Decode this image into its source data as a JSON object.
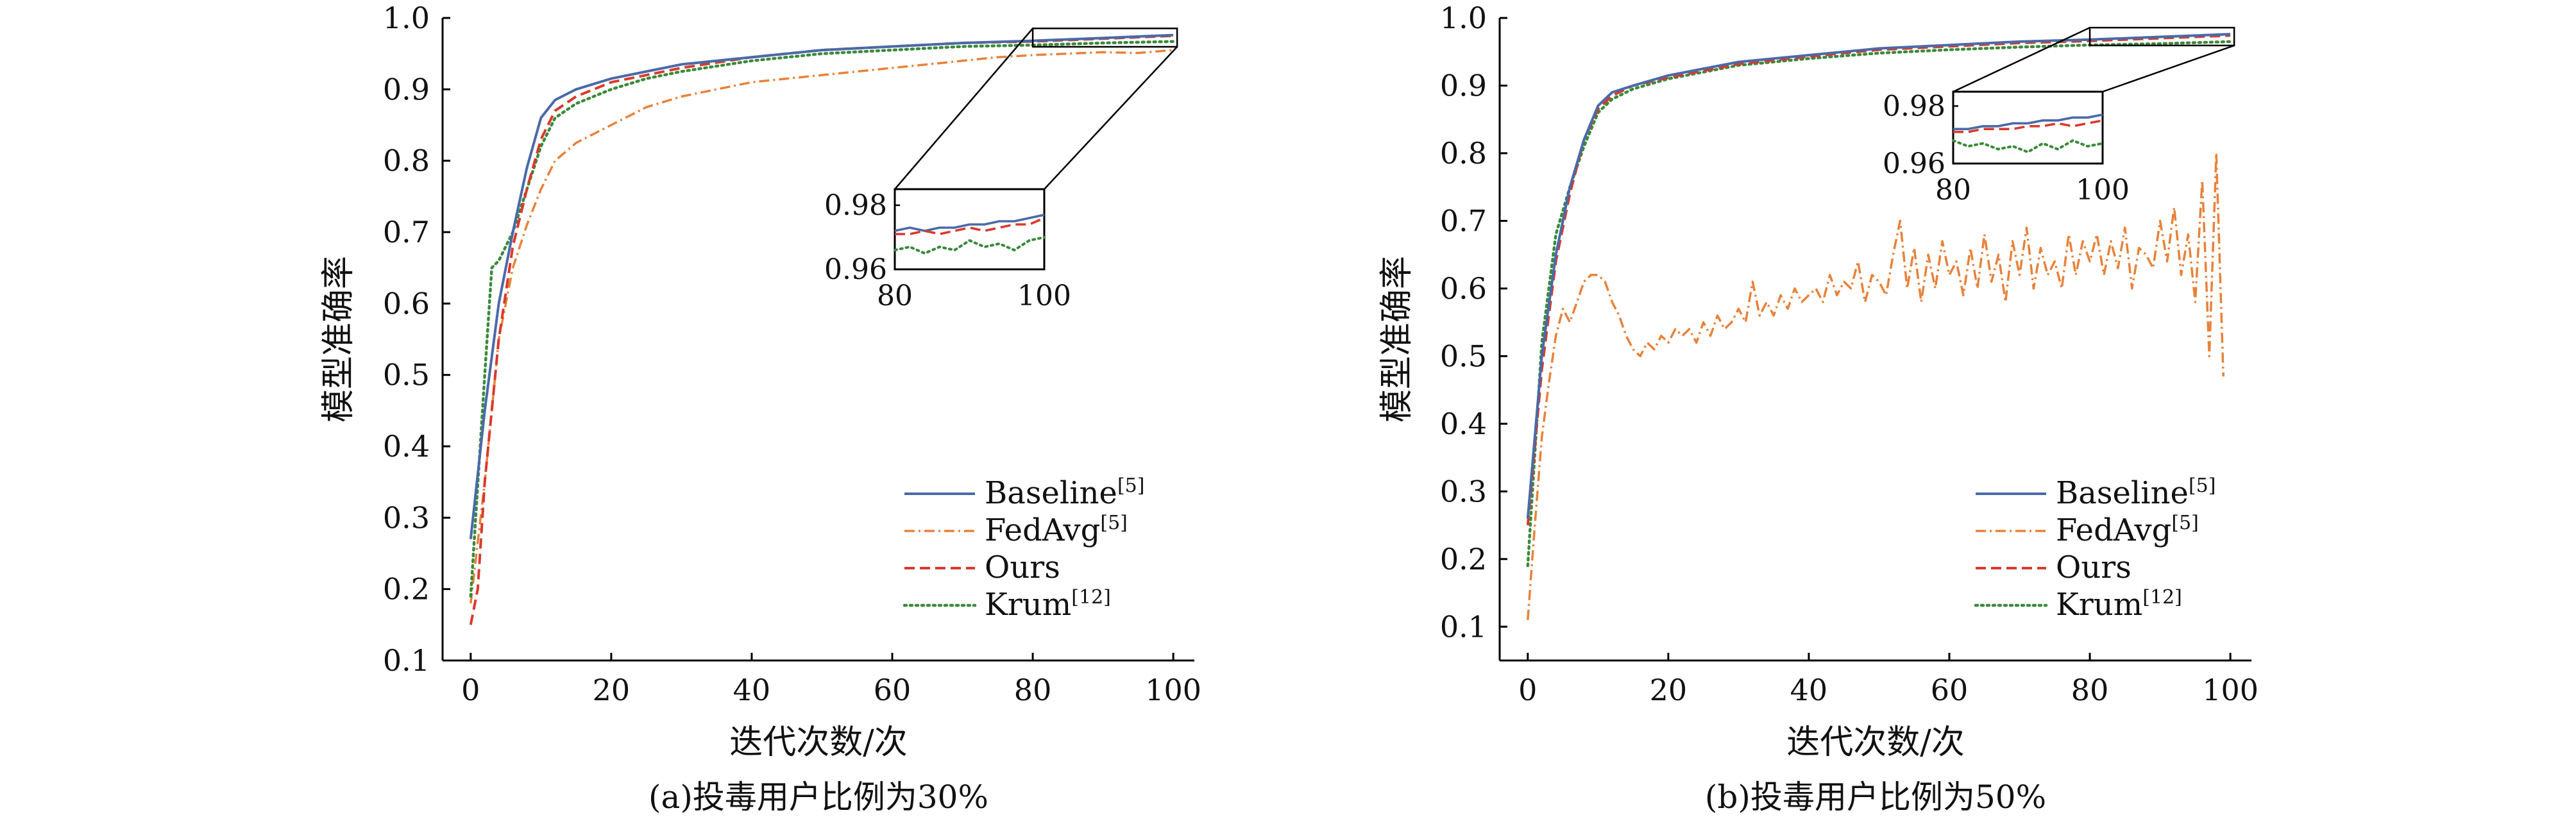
{
  "colors": {
    "baseline": "#4a6aa8",
    "fedavg": "#e8823a",
    "ours": "#d93a2b",
    "krum": "#3b8a3b",
    "axis": "#000000"
  },
  "chart_data": [
    {
      "type": "line",
      "id": "a",
      "caption": "(a)投毒用户比例为30%",
      "xlabel": "迭代次数/次",
      "ylabel": "模型准确率",
      "xlim": [
        -4,
        103
      ],
      "ylim": [
        0.1,
        1.0
      ],
      "xticks": [
        0,
        20,
        40,
        60,
        80,
        100
      ],
      "yticks": [
        0.1,
        0.2,
        0.3,
        0.4,
        0.5,
        0.6,
        0.7,
        0.8,
        0.9,
        1.0
      ],
      "ytick_labels": [
        "0.1",
        "0.2",
        "0.3",
        "0.4",
        "0.5",
        "0.6",
        "0.7",
        "0.8",
        "0.9",
        "1.0"
      ],
      "legend_position": "lower-right",
      "legend": [
        {
          "key": "baseline",
          "label": "Baseline",
          "sup": "[5]"
        },
        {
          "key": "fedavg",
          "label": "FedAvg",
          "sup": "[5]"
        },
        {
          "key": "ours",
          "label": "Ours",
          "sup": ""
        },
        {
          "key": "krum",
          "label": "Krum",
          "sup": "[12]"
        }
      ],
      "series": [
        {
          "key": "baseline",
          "style": "solid",
          "x": [
            0,
            2,
            4,
            6,
            8,
            10,
            12,
            15,
            20,
            25,
            30,
            40,
            50,
            60,
            70,
            80,
            90,
            100
          ],
          "y": [
            0.27,
            0.45,
            0.6,
            0.7,
            0.79,
            0.86,
            0.885,
            0.9,
            0.915,
            0.925,
            0.935,
            0.945,
            0.955,
            0.96,
            0.965,
            0.968,
            0.972,
            0.976
          ]
        },
        {
          "key": "fedavg",
          "style": "dashdot",
          "x": [
            0,
            2,
            4,
            6,
            8,
            10,
            12,
            15,
            20,
            25,
            30,
            35,
            40,
            45,
            50,
            55,
            60,
            65,
            70,
            75,
            80,
            85,
            90,
            95,
            100
          ],
          "y": [
            0.18,
            0.35,
            0.55,
            0.65,
            0.71,
            0.76,
            0.8,
            0.825,
            0.85,
            0.875,
            0.89,
            0.9,
            0.91,
            0.915,
            0.92,
            0.925,
            0.93,
            0.935,
            0.94,
            0.945,
            0.948,
            0.95,
            0.952,
            0.951,
            0.955
          ]
        },
        {
          "key": "ours",
          "style": "dashed",
          "x": [
            0,
            1,
            2,
            4,
            6,
            8,
            10,
            12,
            15,
            20,
            25,
            30,
            40,
            50,
            60,
            70,
            80,
            90,
            100
          ],
          "y": [
            0.15,
            0.2,
            0.35,
            0.55,
            0.68,
            0.76,
            0.83,
            0.87,
            0.89,
            0.91,
            0.92,
            0.93,
            0.945,
            0.955,
            0.96,
            0.965,
            0.967,
            0.971,
            0.975
          ]
        },
        {
          "key": "krum",
          "style": "dotted",
          "x": [
            0,
            2,
            3,
            4,
            6,
            8,
            10,
            12,
            15,
            20,
            25,
            30,
            40,
            50,
            60,
            70,
            80,
            90,
            100
          ],
          "y": [
            0.19,
            0.5,
            0.65,
            0.66,
            0.7,
            0.76,
            0.82,
            0.86,
            0.88,
            0.9,
            0.915,
            0.925,
            0.94,
            0.95,
            0.955,
            0.96,
            0.962,
            0.965,
            0.967
          ]
        }
      ],
      "inset": {
        "xlim": [
          80,
          100
        ],
        "ylim": [
          0.96,
          0.985
        ],
        "xticks": [
          80,
          100
        ],
        "yticks": [
          0.96,
          0.98
        ],
        "ytick_labels": [
          "0.96",
          "0.98"
        ],
        "zoom_region": {
          "x": [
            80,
            100
          ],
          "y": [
            0.965,
            0.98
          ]
        },
        "series": [
          {
            "key": "baseline",
            "style": "solid",
            "x": [
              80,
              82,
              84,
              86,
              88,
              90,
              92,
              94,
              96,
              98,
              100
            ],
            "y": [
              0.972,
              0.973,
              0.972,
              0.973,
              0.973,
              0.974,
              0.974,
              0.975,
              0.975,
              0.976,
              0.977
            ]
          },
          {
            "key": "ours",
            "style": "dashed",
            "x": [
              80,
              82,
              84,
              86,
              88,
              90,
              92,
              94,
              96,
              98,
              100
            ],
            "y": [
              0.971,
              0.971,
              0.972,
              0.971,
              0.972,
              0.973,
              0.972,
              0.973,
              0.974,
              0.974,
              0.976
            ]
          },
          {
            "key": "krum",
            "style": "dotted",
            "x": [
              80,
              82,
              84,
              86,
              88,
              90,
              92,
              94,
              96,
              98,
              100
            ],
            "y": [
              0.966,
              0.967,
              0.965,
              0.967,
              0.966,
              0.969,
              0.967,
              0.968,
              0.966,
              0.969,
              0.97
            ]
          }
        ]
      }
    },
    {
      "type": "line",
      "id": "b",
      "caption": "(b)投毒用户比例为50%",
      "xlabel": "迭代次数/次",
      "ylabel": "模型准确率",
      "xlim": [
        -4,
        103
      ],
      "ylim": [
        0.05,
        1.0
      ],
      "xticks": [
        0,
        20,
        40,
        60,
        80,
        100
      ],
      "yticks": [
        0.1,
        0.2,
        0.3,
        0.4,
        0.5,
        0.6,
        0.7,
        0.8,
        0.9,
        1.0
      ],
      "ytick_labels": [
        "0.1",
        "0.2",
        "0.3",
        "0.4",
        "0.5",
        "0.6",
        "0.7",
        "0.8",
        "0.9",
        "1.0"
      ],
      "legend_position": "lower-right",
      "legend": [
        {
          "key": "baseline",
          "label": "Baseline",
          "sup": "[5]"
        },
        {
          "key": "fedavg",
          "label": "FedAvg",
          "sup": "[5]"
        },
        {
          "key": "ours",
          "label": "Ours",
          "sup": ""
        },
        {
          "key": "krum",
          "label": "Krum",
          "sup": "[12]"
        }
      ],
      "series": [
        {
          "key": "baseline",
          "style": "solid",
          "x": [
            0,
            2,
            4,
            6,
            8,
            10,
            12,
            15,
            20,
            25,
            30,
            40,
            50,
            60,
            70,
            80,
            90,
            100
          ],
          "y": [
            0.26,
            0.5,
            0.65,
            0.75,
            0.82,
            0.87,
            0.89,
            0.9,
            0.915,
            0.925,
            0.935,
            0.945,
            0.955,
            0.96,
            0.965,
            0.968,
            0.972,
            0.976
          ]
        },
        {
          "key": "fedavg",
          "style": "dashdot",
          "x": [
            0,
            1,
            2,
            3,
            4,
            5,
            6,
            7,
            8,
            9,
            10,
            11,
            12,
            13,
            14,
            15,
            16,
            17,
            18,
            19,
            20,
            21,
            22,
            23,
            24,
            25,
            26,
            27,
            28,
            29,
            30,
            31,
            32,
            33,
            34,
            35,
            36,
            37,
            38,
            39,
            40,
            41,
            42,
            43,
            44,
            45,
            46,
            47,
            48,
            49,
            50,
            51,
            52,
            53,
            54,
            55,
            56,
            57,
            58,
            59,
            60,
            61,
            62,
            63,
            64,
            65,
            66,
            67,
            68,
            69,
            70,
            71,
            72,
            73,
            74,
            75,
            76,
            77,
            78,
            79,
            80,
            81,
            82,
            83,
            84,
            85,
            86,
            87,
            88,
            89,
            90,
            91,
            92,
            93,
            94,
            95,
            96,
            97,
            98,
            99
          ],
          "y": [
            0.11,
            0.25,
            0.38,
            0.46,
            0.53,
            0.57,
            0.55,
            0.58,
            0.61,
            0.62,
            0.62,
            0.61,
            0.58,
            0.56,
            0.53,
            0.51,
            0.5,
            0.52,
            0.51,
            0.53,
            0.52,
            0.54,
            0.53,
            0.54,
            0.52,
            0.55,
            0.53,
            0.56,
            0.54,
            0.55,
            0.57,
            0.55,
            0.61,
            0.56,
            0.58,
            0.56,
            0.59,
            0.57,
            0.6,
            0.58,
            0.59,
            0.6,
            0.58,
            0.62,
            0.59,
            0.61,
            0.6,
            0.64,
            0.58,
            0.62,
            0.61,
            0.59,
            0.65,
            0.7,
            0.6,
            0.66,
            0.58,
            0.65,
            0.6,
            0.67,
            0.62,
            0.64,
            0.59,
            0.66,
            0.6,
            0.68,
            0.61,
            0.65,
            0.58,
            0.67,
            0.62,
            0.69,
            0.6,
            0.66,
            0.62,
            0.64,
            0.6,
            0.68,
            0.62,
            0.67,
            0.64,
            0.68,
            0.62,
            0.67,
            0.63,
            0.69,
            0.6,
            0.66,
            0.65,
            0.63,
            0.7,
            0.64,
            0.72,
            0.62,
            0.68,
            0.58,
            0.76,
            0.5,
            0.8,
            0.47
          ]
        },
        {
          "key": "ours",
          "style": "dashed",
          "x": [
            0,
            2,
            4,
            6,
            8,
            10,
            12,
            15,
            20,
            25,
            30,
            40,
            50,
            60,
            70,
            80,
            90,
            100
          ],
          "y": [
            0.25,
            0.48,
            0.64,
            0.74,
            0.82,
            0.865,
            0.885,
            0.9,
            0.912,
            0.922,
            0.932,
            0.943,
            0.953,
            0.958,
            0.963,
            0.966,
            0.97,
            0.974
          ]
        },
        {
          "key": "krum",
          "style": "dotted",
          "x": [
            0,
            2,
            4,
            6,
            8,
            10,
            12,
            15,
            20,
            25,
            30,
            40,
            50,
            60,
            70,
            80,
            90,
            100
          ],
          "y": [
            0.19,
            0.52,
            0.68,
            0.75,
            0.81,
            0.86,
            0.88,
            0.895,
            0.91,
            0.92,
            0.93,
            0.94,
            0.948,
            0.953,
            0.957,
            0.96,
            0.962,
            0.965
          ]
        }
      ],
      "inset": {
        "xlim": [
          80,
          100
        ],
        "ylim": [
          0.96,
          0.985
        ],
        "xticks": [
          80,
          100
        ],
        "yticks": [
          0.96,
          0.98
        ],
        "ytick_labels": [
          "0.96",
          "0.98"
        ],
        "zoom_region": {
          "x": [
            80,
            100
          ],
          "y": [
            0.965,
            0.98
          ]
        },
        "series": [
          {
            "key": "baseline",
            "style": "solid",
            "x": [
              80,
              82,
              84,
              86,
              88,
              90,
              92,
              94,
              96,
              98,
              100
            ],
            "y": [
              0.972,
              0.972,
              0.973,
              0.973,
              0.974,
              0.974,
              0.975,
              0.975,
              0.976,
              0.976,
              0.977
            ]
          },
          {
            "key": "ours",
            "style": "dashed",
            "x": [
              80,
              82,
              84,
              86,
              88,
              90,
              92,
              94,
              96,
              98,
              100
            ],
            "y": [
              0.971,
              0.971,
              0.972,
              0.972,
              0.972,
              0.973,
              0.973,
              0.974,
              0.973,
              0.974,
              0.975
            ]
          },
          {
            "key": "krum",
            "style": "dotted",
            "x": [
              80,
              82,
              84,
              86,
              88,
              90,
              92,
              94,
              96,
              98,
              100
            ],
            "y": [
              0.968,
              0.966,
              0.967,
              0.965,
              0.966,
              0.964,
              0.967,
              0.965,
              0.968,
              0.966,
              0.967
            ]
          }
        ]
      }
    }
  ]
}
